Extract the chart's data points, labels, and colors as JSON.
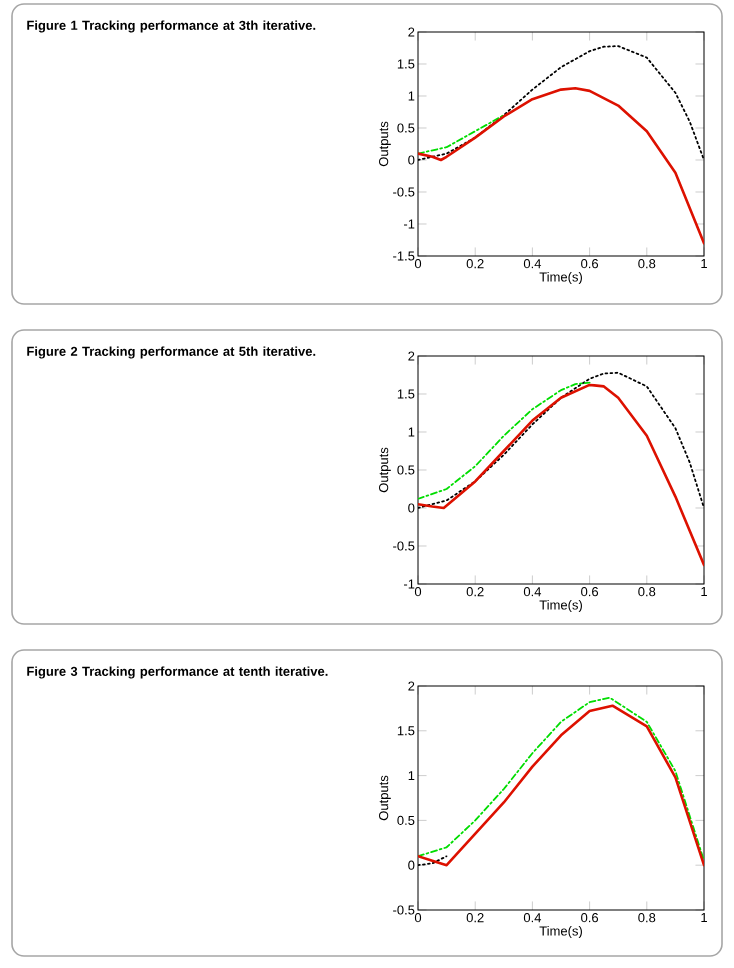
{
  "chart_data": [
    {
      "type": "line",
      "title": "**Figure 1**  Tracking performance at 3th iterative.",
      "xlabel": "Time(s)",
      "ylabel": "Outputs",
      "xlim": [
        0,
        1
      ],
      "ylim": [
        -1.5,
        2
      ],
      "xticks": [
        0,
        0.2,
        0.4,
        0.6,
        0.8,
        1
      ],
      "yticks": [
        -1.5,
        -1,
        -0.5,
        0,
        0.5,
        1,
        1.5,
        2
      ],
      "marker": "none",
      "series": [
        {
          "color": "#000000",
          "line_style": "dotted",
          "x": [
            0,
            0.1,
            0.2,
            0.3,
            0.4,
            0.5,
            0.6,
            0.65,
            0.7,
            0.8,
            0.9,
            0.95,
            1
          ],
          "values": [
            0,
            0.1,
            0.35,
            0.7,
            1.1,
            1.45,
            1.7,
            1.77,
            1.78,
            1.6,
            1.05,
            0.6,
            0
          ]
        },
        {
          "color": "#00dd00",
          "line_style": "dashdotted",
          "x": [
            0,
            0.1,
            0.2,
            0.3
          ],
          "values": [
            0.1,
            0.2,
            0.45,
            0.7
          ]
        },
        {
          "color": "#dd1100",
          "line_style": "solid",
          "x": [
            0,
            0.05,
            0.08,
            0.1,
            0.2,
            0.3,
            0.4,
            0.5,
            0.55,
            0.6,
            0.7,
            0.8,
            0.9,
            1
          ],
          "values": [
            0.1,
            0.05,
            0,
            0.05,
            0.35,
            0.68,
            0.95,
            1.1,
            1.12,
            1.08,
            0.85,
            0.45,
            -0.2,
            -1.3
          ]
        }
      ]
    },
    {
      "type": "line",
      "title": "**Figure 2**  Tracking performance at 5th iterative.",
      "xlabel": "Time(s)",
      "ylabel": "Outputs",
      "xlim": [
        0,
        1
      ],
      "ylim": [
        -1,
        2
      ],
      "xticks": [
        0,
        0.2,
        0.4,
        0.6,
        0.8,
        1
      ],
      "yticks": [
        -1,
        -0.5,
        0,
        0.5,
        1,
        1.5,
        2
      ],
      "marker": "none",
      "series": [
        {
          "color": "#000000",
          "line_style": "dotted",
          "x": [
            0,
            0.1,
            0.2,
            0.3,
            0.4,
            0.5,
            0.6,
            0.65,
            0.7,
            0.8,
            0.9,
            0.95,
            1
          ],
          "values": [
            0,
            0.1,
            0.35,
            0.7,
            1.1,
            1.45,
            1.7,
            1.77,
            1.78,
            1.6,
            1.05,
            0.6,
            0
          ]
        },
        {
          "color": "#00dd00",
          "line_style": "dashdotted",
          "x": [
            0,
            0.1,
            0.2,
            0.3,
            0.4,
            0.5,
            0.55,
            0.6
          ],
          "values": [
            0.12,
            0.25,
            0.55,
            0.95,
            1.3,
            1.55,
            1.63,
            1.65
          ]
        },
        {
          "color": "#dd1100",
          "line_style": "solid",
          "x": [
            0,
            0.05,
            0.09,
            0.2,
            0.3,
            0.4,
            0.5,
            0.6,
            0.65,
            0.7,
            0.8,
            0.9,
            1
          ],
          "values": [
            0.05,
            0.02,
            0,
            0.35,
            0.75,
            1.15,
            1.45,
            1.62,
            1.6,
            1.45,
            0.95,
            0.15,
            -0.75
          ]
        }
      ]
    },
    {
      "type": "line",
      "title": "**Figure 3**  Tracking performance at tenth iterative.",
      "xlabel": "Time(s)",
      "ylabel": "Outputs",
      "xlim": [
        0,
        1
      ],
      "ylim": [
        -0.5,
        2
      ],
      "xticks": [
        0,
        0.2,
        0.4,
        0.6,
        0.8,
        1
      ],
      "yticks": [
        -0.5,
        0,
        0.5,
        1,
        1.5,
        2
      ],
      "marker": "none",
      "series": [
        {
          "color": "#000000",
          "line_style": "dotted",
          "x": [
            0,
            0.05,
            0.1
          ],
          "values": [
            0,
            0.02,
            0.1
          ]
        },
        {
          "color": "#00dd00",
          "line_style": "dashdotted",
          "x": [
            0,
            0.1,
            0.2,
            0.3,
            0.4,
            0.5,
            0.6,
            0.67,
            0.8,
            0.9,
            1
          ],
          "values": [
            0.1,
            0.2,
            0.5,
            0.85,
            1.25,
            1.6,
            1.82,
            1.87,
            1.6,
            1.05,
            0.05
          ]
        },
        {
          "color": "#dd1100",
          "line_style": "solid",
          "x": [
            0,
            0.05,
            0.1,
            0.2,
            0.3,
            0.4,
            0.5,
            0.6,
            0.68,
            0.8,
            0.9,
            1
          ],
          "values": [
            0.1,
            0.05,
            0,
            0.35,
            0.7,
            1.1,
            1.45,
            1.72,
            1.78,
            1.55,
            0.98,
            0
          ]
        }
      ]
    }
  ]
}
